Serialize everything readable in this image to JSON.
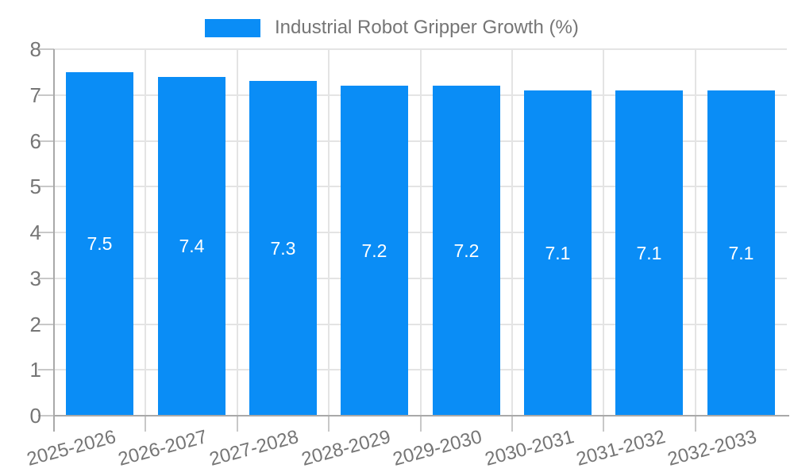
{
  "chart_data": {
    "type": "bar",
    "title": "Industrial Robot Gripper Growth (%)",
    "legend": {
      "position": "top-center",
      "label": "Industrial Robot Gripper Growth (%)",
      "swatch_color": "#0a8df6"
    },
    "categories": [
      "2025-2026",
      "2026-2027",
      "2027-2028",
      "2028-2029",
      "2029-2030",
      "2030-2031",
      "2031-2032",
      "2032-2033"
    ],
    "values": [
      7.5,
      7.4,
      7.3,
      7.2,
      7.2,
      7.1,
      7.1,
      7.1
    ],
    "value_labels": [
      "7.5",
      "7.4",
      "7.3",
      "7.2",
      "7.2",
      "7.1",
      "7.1",
      "7.1"
    ],
    "xlabel": "",
    "ylabel": "",
    "ylim": [
      0,
      8
    ],
    "ytick_labels": [
      "0",
      "1",
      "2",
      "3",
      "4",
      "5",
      "6",
      "7",
      "8"
    ],
    "grid": true,
    "x_label_rotation_deg": -15,
    "colors": {
      "bar": "#0a8df6",
      "value_label": "#ffffff",
      "axis_label": "#757575",
      "legend_text": "#757575",
      "gridline": "#e4e4e4",
      "tick": "#c8c8c8",
      "axis_line": "#a9a9a9",
      "background": "#ffffff"
    }
  }
}
